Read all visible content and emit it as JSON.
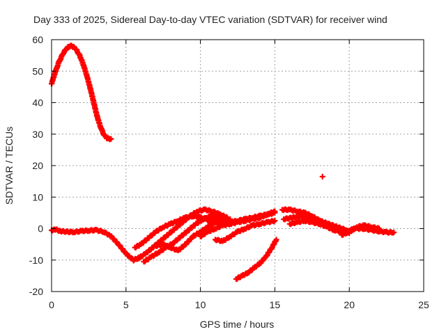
{
  "chart_data": {
    "type": "scatter",
    "title": "Day 333 of 2025, Sidereal Day-to-day VTEC variation (SDTVAR) for receiver wind",
    "xlabel": "GPS time / hours",
    "ylabel": "SDTVAR / TECUs",
    "xlim": [
      0,
      25
    ],
    "ylim": [
      -20,
      60
    ],
    "xticks": [
      "0",
      "5",
      "10",
      "15",
      "20",
      "25"
    ],
    "yticks": [
      "-20",
      "-10",
      "0",
      "10",
      "20",
      "30",
      "40",
      "50",
      "60"
    ],
    "grid": true,
    "marker": "plus",
    "color": "#ff0000",
    "series": [
      {
        "name": "early-peak",
        "x": [
          0.0,
          0.1,
          0.2,
          0.3,
          0.4,
          0.5,
          0.6,
          0.7,
          0.8,
          0.9,
          1.0,
          1.1,
          1.2,
          1.3,
          1.4,
          1.5,
          1.6,
          1.7,
          1.8,
          1.9,
          2.0,
          2.1,
          2.2,
          2.3,
          2.4,
          2.5,
          2.6,
          2.7,
          2.8,
          2.9,
          3.0,
          3.1,
          3.2,
          3.3,
          3.4,
          3.5,
          3.6,
          3.7,
          3.8,
          3.9,
          4.0
        ],
        "y": [
          46,
          47.5,
          49,
          50.4,
          51.7,
          52.9,
          53.9,
          54.9,
          55.8,
          56.5,
          57.1,
          57.6,
          57.9,
          58.0,
          57.9,
          57.6,
          57.1,
          56.5,
          55.7,
          54.8,
          53.7,
          52.5,
          51.1,
          49.6,
          48.0,
          46.3,
          44.5,
          42.6,
          40.7,
          38.7,
          36.8,
          35.0,
          33.5,
          32.2,
          31.0,
          30.0,
          29.3,
          28.8,
          28.6,
          28.5,
          28.5
        ]
      },
      {
        "name": "baseline",
        "x": [
          0.0,
          0.3,
          0.6,
          1.0,
          1.5,
          2.0,
          2.5,
          3.0,
          3.5,
          4.0,
          4.5,
          5.0,
          5.5,
          6.0
        ],
        "y": [
          -0.5,
          -0.3,
          -0.8,
          -1.0,
          -1.1,
          -0.8,
          -0.6,
          -0.5,
          -1.0,
          -2.5,
          -5.0,
          -8.0,
          -10.0,
          -9.0
        ]
      },
      {
        "name": "mid-track-1",
        "x": [
          5.8,
          6.3,
          6.8,
          7.3,
          7.8,
          8.3,
          8.8,
          9.3,
          9.8,
          10.3,
          10.8,
          11.3,
          11.8
        ],
        "y": [
          -9.5,
          -8.0,
          -6.0,
          -4.0,
          -2.0,
          0.0,
          2.0,
          4.0,
          5.5,
          6.0,
          5.5,
          4.5,
          3.5
        ]
      },
      {
        "name": "mid-track-2",
        "x": [
          6.2,
          6.7,
          7.2,
          7.7,
          8.2,
          8.7,
          9.2,
          9.7,
          10.2,
          10.7,
          11.2,
          11.7
        ],
        "y": [
          -10.5,
          -9.0,
          -7.5,
          -6.0,
          -4.5,
          -2.5,
          -0.5,
          1.5,
          3.0,
          4.0,
          3.5,
          2.5
        ]
      },
      {
        "name": "mid-track-3",
        "x": [
          5.6,
          6.0,
          6.5,
          7.0,
          7.5,
          8.0,
          8.5,
          9.0,
          9.5,
          10.0,
          10.5,
          11.0,
          11.5
        ],
        "y": [
          -6.0,
          -5.0,
          -3.0,
          -1.0,
          0.5,
          1.5,
          2.5,
          3.5,
          4.0,
          3.5,
          3.0,
          2.0,
          1.5
        ]
      },
      {
        "name": "mid-track-4",
        "x": [
          7.0,
          7.5,
          8.0,
          8.5,
          9.0,
          9.5,
          10.0,
          10.5,
          11.0,
          11.5,
          12.0
        ],
        "y": [
          -5.5,
          -5.0,
          -6.0,
          -7.0,
          -5.0,
          -2.5,
          -1.0,
          0.5,
          2.0,
          2.5,
          3.0
        ]
      },
      {
        "name": "mid-track-5",
        "x": [
          10.0,
          10.5,
          11.0,
          11.5,
          12.0,
          12.5,
          13.0,
          13.5,
          14.0,
          14.5,
          15.0
        ],
        "y": [
          -2.5,
          -1.0,
          0.0,
          1.0,
          1.5,
          2.0,
          2.5,
          3.0,
          3.5,
          4.5,
          5.5
        ]
      },
      {
        "name": "mid-track-6",
        "x": [
          11.0,
          11.5,
          12.0,
          12.5,
          13.0,
          13.5,
          14.0,
          14.5,
          15.0
        ],
        "y": [
          -3.5,
          -4.0,
          -2.5,
          -1.0,
          0.0,
          1.0,
          1.5,
          2.0,
          2.5
        ]
      },
      {
        "name": "mid-track-7",
        "x": [
          10.5,
          11.0,
          11.5,
          12.0,
          12.5,
          13.0,
          13.5,
          14.0,
          14.5,
          15.0
        ],
        "y": [
          2.5,
          2.0,
          1.5,
          2.0,
          2.5,
          3.0,
          3.5,
          4.0,
          4.5,
          5.0
        ]
      },
      {
        "name": "dip-track",
        "x": [
          12.4,
          12.8,
          13.2,
          13.6,
          14.0,
          14.4,
          14.8,
          15.1
        ],
        "y": [
          -16.0,
          -15.0,
          -14.0,
          -12.5,
          -11.0,
          -9.0,
          -6.0,
          -3.5
        ]
      },
      {
        "name": "late-track-1",
        "x": [
          15.5,
          16.0,
          16.5,
          17.0,
          17.5,
          18.0,
          18.5,
          19.0,
          19.5,
          20.0
        ],
        "y": [
          6.0,
          6.0,
          5.5,
          5.0,
          4.0,
          2.5,
          1.0,
          0.0,
          -1.0,
          -1.5
        ]
      },
      {
        "name": "late-track-2",
        "x": [
          15.6,
          16.2,
          16.8,
          17.4,
          18.0,
          18.6,
          19.2,
          19.8
        ],
        "y": [
          3.0,
          3.5,
          4.0,
          3.5,
          2.5,
          1.5,
          0.5,
          -0.5
        ]
      },
      {
        "name": "late-track-3",
        "x": [
          16.0,
          16.5,
          17.0,
          17.5,
          18.0,
          18.5,
          19.0,
          19.5,
          20.0,
          20.5,
          21.0,
          21.5,
          22.0,
          22.5,
          23.0
        ],
        "y": [
          1.5,
          2.0,
          2.5,
          2.0,
          1.5,
          0.5,
          -0.5,
          -1.0,
          -0.5,
          0.0,
          0.0,
          -0.5,
          -0.8,
          -1.2,
          -1.2
        ]
      },
      {
        "name": "late-track-4",
        "x": [
          19.5,
          20.0,
          20.5,
          21.0,
          21.5,
          22.0
        ],
        "y": [
          -2.0,
          -1.0,
          0.5,
          1.0,
          0.5,
          0.0
        ]
      },
      {
        "name": "outlier",
        "x": [
          18.2
        ],
        "y": [
          16.5
        ]
      }
    ]
  }
}
